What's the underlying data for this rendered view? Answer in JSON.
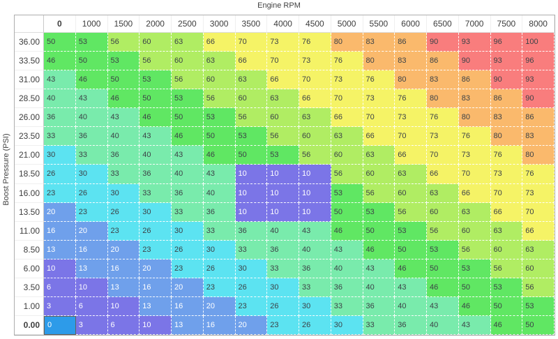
{
  "x_axis_title": "Engine RPM",
  "y_axis_title": "Boost Pressure (PSI)",
  "chart_data": {
    "type": "heatmap",
    "title": "Engine RPM",
    "xlabel": "Engine RPM",
    "ylabel": "Boost Pressure (PSI)",
    "columns": [
      "0",
      "1000",
      "1500",
      "2000",
      "2500",
      "3000",
      "3500",
      "4000",
      "4500",
      "5000",
      "5500",
      "6000",
      "6500",
      "7000",
      "7500",
      "8000"
    ],
    "rows": [
      "36.00",
      "33.50",
      "31.00",
      "28.50",
      "26.00",
      "23.50",
      "21.00",
      "18.50",
      "16.00",
      "13.50",
      "11.00",
      "8.50",
      "6.00",
      "3.50",
      "1.00",
      "0.00"
    ],
    "values": [
      [
        50,
        53,
        56,
        60,
        63,
        66,
        70,
        73,
        76,
        80,
        83,
        86,
        90,
        93,
        96,
        100
      ],
      [
        46,
        50,
        53,
        56,
        60,
        63,
        66,
        70,
        73,
        76,
        80,
        83,
        86,
        90,
        93,
        96
      ],
      [
        43,
        46,
        50,
        53,
        56,
        60,
        63,
        66,
        70,
        73,
        76,
        80,
        83,
        86,
        90,
        93
      ],
      [
        40,
        43,
        46,
        50,
        53,
        56,
        60,
        63,
        66,
        70,
        73,
        76,
        80,
        83,
        86,
        90
      ],
      [
        36,
        40,
        43,
        46,
        50,
        53,
        56,
        60,
        63,
        66,
        70,
        73,
        76,
        80,
        83,
        86
      ],
      [
        33,
        36,
        40,
        43,
        46,
        50,
        53,
        56,
        60,
        63,
        66,
        70,
        73,
        76,
        80,
        83
      ],
      [
        30,
        33,
        36,
        40,
        43,
        46,
        50,
        53,
        56,
        60,
        63,
        66,
        70,
        73,
        76,
        80
      ],
      [
        26,
        30,
        33,
        36,
        40,
        43,
        10,
        10,
        10,
        56,
        60,
        63,
        66,
        70,
        73,
        76
      ],
      [
        23,
        26,
        30,
        33,
        36,
        40,
        10,
        10,
        10,
        53,
        56,
        60,
        63,
        66,
        70,
        73
      ],
      [
        20,
        23,
        26,
        30,
        33,
        36,
        10,
        10,
        10,
        50,
        53,
        56,
        60,
        63,
        66,
        70
      ],
      [
        16,
        20,
        23,
        26,
        30,
        33,
        36,
        40,
        43,
        46,
        50,
        53,
        56,
        60,
        63,
        66
      ],
      [
        13,
        16,
        20,
        23,
        26,
        30,
        33,
        36,
        40,
        43,
        46,
        50,
        53,
        56,
        60,
        63
      ],
      [
        10,
        13,
        16,
        20,
        23,
        26,
        30,
        33,
        36,
        40,
        43,
        46,
        50,
        53,
        56,
        60
      ],
      [
        6,
        10,
        13,
        16,
        20,
        23,
        26,
        30,
        33,
        36,
        40,
        43,
        46,
        50,
        53,
        56
      ],
      [
        3,
        6,
        10,
        13,
        16,
        20,
        23,
        26,
        30,
        33,
        36,
        40,
        43,
        46,
        50,
        53
      ],
      [
        0,
        3,
        6,
        10,
        13,
        16,
        20,
        23,
        26,
        30,
        33,
        36,
        40,
        43,
        46,
        50
      ]
    ],
    "selected_cell": {
      "row_index": 15,
      "col_index": 0,
      "row_label": "0.00",
      "col_label": "0",
      "value": 0
    },
    "color_scale": [
      {
        "max": 10,
        "bg": "#7B75E7",
        "text": "#FFFFFF"
      },
      {
        "max": 20,
        "bg": "#6FA0EB",
        "text": "#FFFFFF"
      },
      {
        "max": 30,
        "bg": "#5CE3F1",
        "text": "#3C4247"
      },
      {
        "max": 43,
        "bg": "#79EBAC",
        "text": "#3C4247"
      },
      {
        "max": 53,
        "bg": "#60E763",
        "text": "#3C4247"
      },
      {
        "max": 63,
        "bg": "#B0ED63",
        "text": "#3C4247"
      },
      {
        "max": 76,
        "bg": "#F5F366",
        "text": "#3C4247"
      },
      {
        "max": 86,
        "bg": "#FAB96C",
        "text": "#3C4247"
      },
      {
        "max": 100,
        "bg": "#F97D7D",
        "text": "#3C4247"
      }
    ],
    "selected_bg": "#2D9BE9",
    "selected_text": "#FFFFFF",
    "selected_border": "#63635C",
    "grid_dash_color": "#FFFFFF"
  }
}
